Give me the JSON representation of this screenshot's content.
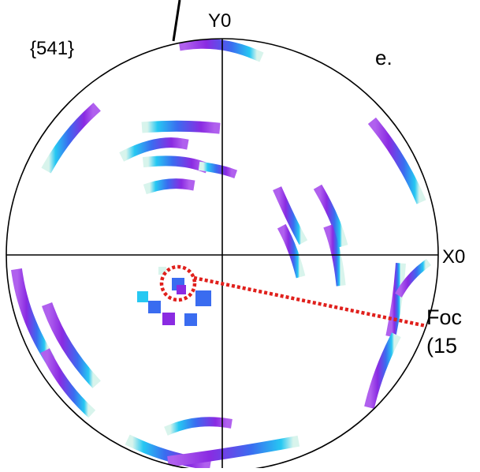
{
  "figure": {
    "family_label": "{541}",
    "panel_label": "e.",
    "y_axis_label": "Y0",
    "x_axis_label": "X0",
    "focus_label_line1": "Foc",
    "focus_label_line2": "(15"
  },
  "colors": {
    "outline": "#000000",
    "streak_core": "#8a2be2",
    "streak_blue": "#3a6cf0",
    "streak_cyan": "#26c8f2",
    "streak_pale": "#d8f4ec",
    "highlight": "#e0201c"
  }
}
